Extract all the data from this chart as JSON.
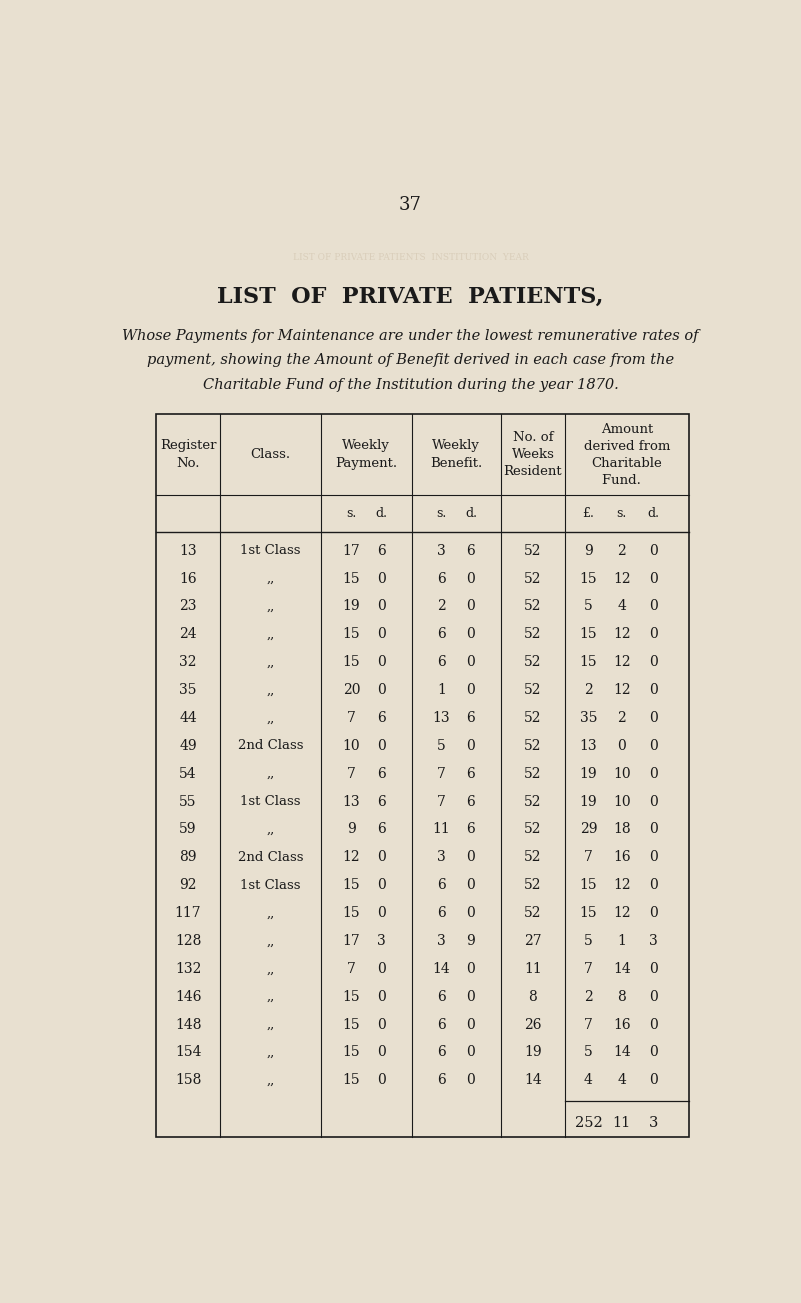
{
  "page_number": "37",
  "title": "LIST  OF  PRIVATE  PATIENTS,",
  "subtitle_line1": "Whose Payments for Maintenance are under the lowest remunerative rates of",
  "subtitle_line2": "payment, showing the Amount of Benefit derived in each case from the",
  "subtitle_line3": "Charitable Fund of the Institution during the year 1870.",
  "bg_color": "#e8e0d0",
  "text_color": "#1a1a1a",
  "rows": [
    {
      "reg": "13",
      "class": "1st Class",
      "wp_s": "17",
      "wp_d": "6",
      "wb_s": "3",
      "wb_d": "6",
      "weeks": "52",
      "amt_l": "9",
      "amt_s": "2",
      "amt_d": "0"
    },
    {
      "reg": "16",
      "class": ",,",
      "wp_s": "15",
      "wp_d": "0",
      "wb_s": "6",
      "wb_d": "0",
      "weeks": "52",
      "amt_l": "15",
      "amt_s": "12",
      "amt_d": "0"
    },
    {
      "reg": "23",
      "class": ",,",
      "wp_s": "19",
      "wp_d": "0",
      "wb_s": "2",
      "wb_d": "0",
      "weeks": "52",
      "amt_l": "5",
      "amt_s": "4",
      "amt_d": "0"
    },
    {
      "reg": "24",
      "class": ",,",
      "wp_s": "15",
      "wp_d": "0",
      "wb_s": "6",
      "wb_d": "0",
      "weeks": "52",
      "amt_l": "15",
      "amt_s": "12",
      "amt_d": "0"
    },
    {
      "reg": "32",
      "class": ",,",
      "wp_s": "15",
      "wp_d": "0",
      "wb_s": "6",
      "wb_d": "0",
      "weeks": "52",
      "amt_l": "15",
      "amt_s": "12",
      "amt_d": "0"
    },
    {
      "reg": "35",
      "class": ",,",
      "wp_s": "20",
      "wp_d": "0",
      "wb_s": "1",
      "wb_d": "0",
      "weeks": "52",
      "amt_l": "2",
      "amt_s": "12",
      "amt_d": "0"
    },
    {
      "reg": "44",
      "class": ",,",
      "wp_s": "7",
      "wp_d": "6",
      "wb_s": "13",
      "wb_d": "6",
      "weeks": "52",
      "amt_l": "35",
      "amt_s": "2",
      "amt_d": "0"
    },
    {
      "reg": "49",
      "class": "2nd Class",
      "wp_s": "10",
      "wp_d": "0",
      "wb_s": "5",
      "wb_d": "0",
      "weeks": "52",
      "amt_l": "13",
      "amt_s": "0",
      "amt_d": "0"
    },
    {
      "reg": "54",
      "class": ",,",
      "wp_s": "7",
      "wp_d": "6",
      "wb_s": "7",
      "wb_d": "6",
      "weeks": "52",
      "amt_l": "19",
      "amt_s": "10",
      "amt_d": "0"
    },
    {
      "reg": "55",
      "class": "1st Class",
      "wp_s": "13",
      "wp_d": "6",
      "wb_s": "7",
      "wb_d": "6",
      "weeks": "52",
      "amt_l": "19",
      "amt_s": "10",
      "amt_d": "0"
    },
    {
      "reg": "59",
      "class": ",,",
      "wp_s": "9",
      "wp_d": "6",
      "wb_s": "11",
      "wb_d": "6",
      "weeks": "52",
      "amt_l": "29",
      "amt_s": "18",
      "amt_d": "0"
    },
    {
      "reg": "89",
      "class": "2nd Class",
      "wp_s": "12",
      "wp_d": "0",
      "wb_s": "3",
      "wb_d": "0",
      "weeks": "52",
      "amt_l": "7",
      "amt_s": "16",
      "amt_d": "0"
    },
    {
      "reg": "92",
      "class": "1st Class",
      "wp_s": "15",
      "wp_d": "0",
      "wb_s": "6",
      "wb_d": "0",
      "weeks": "52",
      "amt_l": "15",
      "amt_s": "12",
      "amt_d": "0"
    },
    {
      "reg": "117",
      "class": ",,",
      "wp_s": "15",
      "wp_d": "0",
      "wb_s": "6",
      "wb_d": "0",
      "weeks": "52",
      "amt_l": "15",
      "amt_s": "12",
      "amt_d": "0"
    },
    {
      "reg": "128",
      "class": ",,",
      "wp_s": "17",
      "wp_d": "3",
      "wb_s": "3",
      "wb_d": "9",
      "weeks": "27",
      "amt_l": "5",
      "amt_s": "1",
      "amt_d": "3"
    },
    {
      "reg": "132",
      "class": ",,",
      "wp_s": "7",
      "wp_d": "0",
      "wb_s": "14",
      "wb_d": "0",
      "weeks": "11",
      "amt_l": "7",
      "amt_s": "14",
      "amt_d": "0"
    },
    {
      "reg": "146",
      "class": ",,",
      "wp_s": "15",
      "wp_d": "0",
      "wb_s": "6",
      "wb_d": "0",
      "weeks": "8",
      "amt_l": "2",
      "amt_s": "8",
      "amt_d": "0"
    },
    {
      "reg": "148",
      "class": ",,",
      "wp_s": "15",
      "wp_d": "0",
      "wb_s": "6",
      "wb_d": "0",
      "weeks": "26",
      "amt_l": "7",
      "amt_s": "16",
      "amt_d": "0"
    },
    {
      "reg": "154",
      "class": ",,",
      "wp_s": "15",
      "wp_d": "0",
      "wb_s": "6",
      "wb_d": "0",
      "weeks": "19",
      "amt_l": "5",
      "amt_s": "14",
      "amt_d": "0"
    },
    {
      "reg": "158",
      "class": ",,",
      "wp_s": "15",
      "wp_d": "0",
      "wb_s": "6",
      "wb_d": "0",
      "weeks": "14",
      "amt_l": "4",
      "amt_s": "4",
      "amt_d": "0"
    }
  ],
  "total_l": "252",
  "total_s": "11",
  "total_d": "3"
}
